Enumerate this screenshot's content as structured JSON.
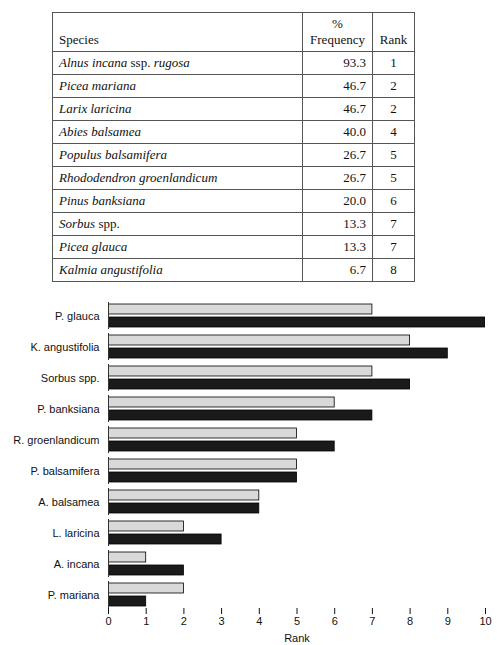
{
  "table": {
    "header": [
      "Species",
      "%\nFrequency",
      "Rank"
    ],
    "rows": [
      [
        "Alnus incana ssp. rugosa",
        "93.3",
        "1"
      ],
      [
        "Picea mariana",
        "46.7",
        "2"
      ],
      [
        "Larix laricina",
        "46.7",
        "2"
      ],
      [
        "Abies balsamea",
        "40.0",
        "4"
      ],
      [
        "Populus balsamifera",
        "26.7",
        "5"
      ],
      [
        "Rhododendron groenlandicum",
        "26.7",
        "5"
      ],
      [
        "Pinus banksiana",
        "20.0",
        "6"
      ],
      [
        "Sorbus spp.",
        "13.3",
        "7"
      ],
      [
        "Picea glauca",
        "13.3",
        "7"
      ],
      [
        "Kalmia angustifolia",
        "6.7",
        "8"
      ]
    ]
  },
  "chart_data": {
    "type": "bar",
    "orientation": "horizontal",
    "categories": [
      "P. glauca",
      "K. angustifolia",
      "Sorbus spp.",
      "P. banksiana",
      "R. groenlandicum",
      "P. balsamifera",
      "A. balsamea",
      "L. laricina",
      "A. incana",
      "P. mariana"
    ],
    "series": [
      {
        "color": "#d9d9d9",
        "values": [
          7,
          8,
          7,
          6,
          5,
          5,
          4,
          2,
          1,
          2
        ]
      },
      {
        "color": "#1a1a1a",
        "values": [
          10,
          9,
          8,
          7,
          6,
          5,
          4,
          3,
          2,
          1
        ]
      }
    ],
    "xlabel": "Rank",
    "xlim": [
      0,
      10
    ],
    "xticks": [
      0,
      1,
      2,
      3,
      4,
      5,
      6,
      7,
      8,
      9,
      10
    ]
  }
}
